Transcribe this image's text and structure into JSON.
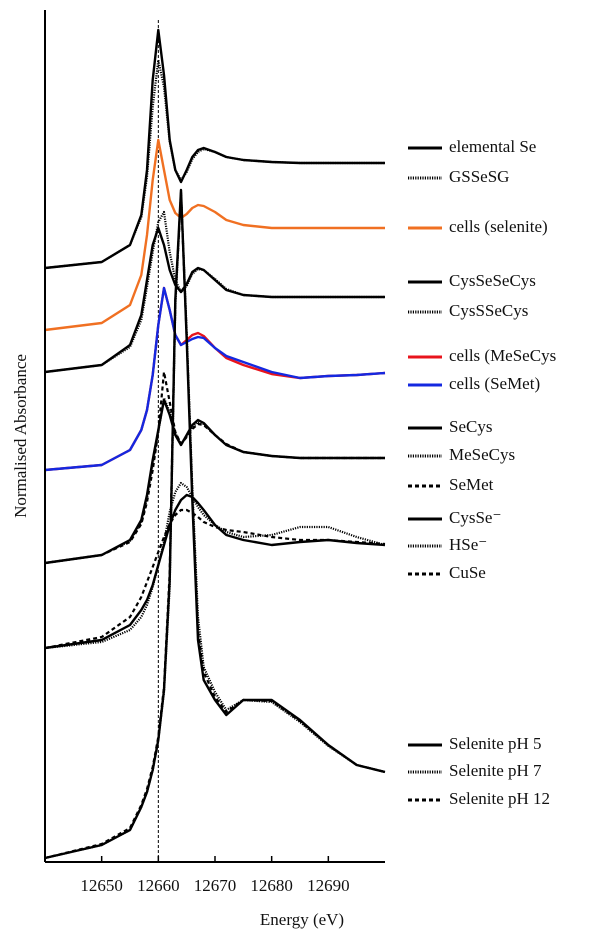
{
  "chart_data": {
    "type": "line",
    "x_label": "Energy (eV)",
    "y_label": "Normalised Absorbance",
    "xlim": [
      12640,
      12700
    ],
    "xticks": [
      12650,
      12660,
      12670,
      12680,
      12690
    ],
    "ylim": [
      0,
      8.52
    ],
    "reference_x": 12660,
    "x": [
      12640,
      12650,
      12655,
      12657,
      12658,
      12659,
      12660,
      12661,
      12662,
      12663,
      12664,
      12665,
      12666,
      12667,
      12668,
      12670,
      12672,
      12675,
      12680,
      12685,
      12690,
      12695,
      12700
    ],
    "series": [
      {
        "name": "elemental Se",
        "color": "#000000",
        "style": "solid",
        "values": [
          5.94,
          6.0,
          6.17,
          6.47,
          6.92,
          7.82,
          8.32,
          7.87,
          7.22,
          6.92,
          6.8,
          6.92,
          7.05,
          7.12,
          7.14,
          7.1,
          7.05,
          7.02,
          7.0,
          6.99,
          6.99,
          6.99,
          6.99
        ]
      },
      {
        "name": "GSSeSG",
        "color": "#000000",
        "style": "dotted",
        "values": [
          5.94,
          6.0,
          6.17,
          6.45,
          6.85,
          7.55,
          8.02,
          7.75,
          7.2,
          6.92,
          6.82,
          6.9,
          7.03,
          7.1,
          7.13,
          7.1,
          7.05,
          7.02,
          7.0,
          6.99,
          6.99,
          6.99,
          6.99
        ]
      },
      {
        "name": "cells (selenite)",
        "color": "#f07022",
        "style": "solid",
        "values": [
          5.32,
          5.39,
          5.57,
          5.87,
          6.27,
          6.82,
          7.22,
          6.92,
          6.62,
          6.49,
          6.44,
          6.48,
          6.54,
          6.57,
          6.56,
          6.5,
          6.42,
          6.37,
          6.34,
          6.34,
          6.34,
          6.34,
          6.34
        ]
      },
      {
        "name": "CysSeSeCys",
        "color": "#000000",
        "style": "solid",
        "values": [
          4.9,
          4.97,
          5.17,
          5.47,
          5.82,
          6.17,
          6.34,
          6.17,
          5.92,
          5.77,
          5.7,
          5.78,
          5.9,
          5.94,
          5.92,
          5.82,
          5.72,
          5.67,
          5.65,
          5.65,
          5.65,
          5.65,
          5.65
        ]
      },
      {
        "name": "CysSSeCys",
        "color": "#000000",
        "style": "dotted",
        "values": [
          4.9,
          4.97,
          5.15,
          5.42,
          5.75,
          6.1,
          6.4,
          6.5,
          6.1,
          5.82,
          5.7,
          5.76,
          5.88,
          5.93,
          5.92,
          5.83,
          5.73,
          5.67,
          5.65,
          5.65,
          5.65,
          5.65,
          5.65
        ]
      },
      {
        "name": "cells (MeSeCys",
        "color": "#e8141c",
        "style": "solid",
        "values": [
          3.92,
          3.97,
          4.12,
          4.32,
          4.52,
          4.87,
          5.37,
          5.74,
          5.52,
          5.27,
          5.17,
          5.22,
          5.27,
          5.29,
          5.26,
          5.14,
          5.04,
          4.97,
          4.88,
          4.84,
          4.86,
          4.87,
          4.89
        ]
      },
      {
        "name": "cells (SeMet)",
        "color": "#1428e0",
        "style": "solid",
        "values": [
          3.92,
          3.97,
          4.12,
          4.32,
          4.52,
          4.87,
          5.37,
          5.74,
          5.52,
          5.27,
          5.17,
          5.2,
          5.23,
          5.25,
          5.24,
          5.14,
          5.06,
          5.0,
          4.9,
          4.84,
          4.86,
          4.87,
          4.89
        ]
      },
      {
        "name": "SeCys",
        "color": "#000000",
        "style": "solid",
        "values": [
          2.99,
          3.07,
          3.22,
          3.42,
          3.67,
          4.02,
          4.32,
          4.62,
          4.47,
          4.27,
          4.17,
          4.27,
          4.37,
          4.42,
          4.39,
          4.27,
          4.17,
          4.1,
          4.06,
          4.04,
          4.04,
          4.04,
          4.04
        ]
      },
      {
        "name": "MeSeCys",
        "color": "#000000",
        "style": "dotted",
        "values": [
          2.99,
          3.07,
          3.21,
          3.4,
          3.64,
          3.98,
          4.3,
          4.64,
          4.5,
          4.29,
          4.18,
          4.26,
          4.35,
          4.4,
          4.38,
          4.27,
          4.17,
          4.1,
          4.06,
          4.04,
          4.04,
          4.04,
          4.04
        ]
      },
      {
        "name": "SeMet",
        "color": "#000000",
        "style": "dashed",
        "values": [
          2.99,
          3.07,
          3.2,
          3.38,
          3.6,
          3.92,
          4.3,
          4.9,
          4.6,
          4.3,
          4.18,
          4.25,
          4.33,
          4.38,
          4.37,
          4.27,
          4.18,
          4.1,
          4.06,
          4.04,
          4.04,
          4.04,
          4.04
        ]
      },
      {
        "name": "CysSe⁻",
        "color": "#000000",
        "style": "solid",
        "values": [
          2.14,
          2.22,
          2.37,
          2.52,
          2.62,
          2.77,
          2.97,
          3.17,
          3.37,
          3.52,
          3.62,
          3.67,
          3.65,
          3.59,
          3.52,
          3.37,
          3.27,
          3.22,
          3.17,
          3.2,
          3.22,
          3.19,
          3.17
        ]
      },
      {
        "name": "HSe⁻",
        "color": "#000000",
        "style": "dotted",
        "values": [
          2.14,
          2.2,
          2.32,
          2.45,
          2.57,
          2.75,
          2.97,
          3.2,
          3.5,
          3.7,
          3.79,
          3.75,
          3.65,
          3.55,
          3.47,
          3.37,
          3.3,
          3.25,
          3.27,
          3.35,
          3.35,
          3.25,
          3.17
        ]
      },
      {
        "name": "CuSe",
        "color": "#000000",
        "style": "dashed",
        "values": [
          2.14,
          2.25,
          2.45,
          2.65,
          2.8,
          2.95,
          3.1,
          3.25,
          3.38,
          3.47,
          3.52,
          3.52,
          3.49,
          3.45,
          3.4,
          3.35,
          3.32,
          3.3,
          3.25,
          3.22,
          3.22,
          3.2,
          3.18
        ]
      },
      {
        "name": "Selenite pH 5",
        "color": "#000000",
        "style": "solid",
        "values": [
          0.04,
          0.17,
          0.32,
          0.55,
          0.7,
          0.92,
          1.22,
          1.72,
          2.82,
          5.62,
          6.72,
          5.22,
          3.62,
          2.22,
          1.82,
          1.62,
          1.47,
          1.62,
          1.62,
          1.42,
          1.17,
          0.97,
          0.9
        ]
      },
      {
        "name": "Selenite pH 7",
        "color": "#000000",
        "style": "dotted",
        "values": [
          0.04,
          0.17,
          0.32,
          0.55,
          0.7,
          0.92,
          1.22,
          1.7,
          2.75,
          5.55,
          6.7,
          5.3,
          3.75,
          2.45,
          1.95,
          1.7,
          1.52,
          1.62,
          1.6,
          1.4,
          1.16,
          0.97,
          0.9
        ]
      },
      {
        "name": "Selenite pH 12",
        "color": "#000000",
        "style": "dashed",
        "values": [
          0.04,
          0.18,
          0.34,
          0.57,
          0.73,
          0.95,
          1.25,
          1.75,
          2.9,
          5.6,
          6.68,
          5.25,
          3.7,
          2.3,
          1.9,
          1.65,
          1.5,
          1.62,
          1.61,
          1.41,
          1.17,
          0.97,
          0.9
        ]
      }
    ]
  }
}
